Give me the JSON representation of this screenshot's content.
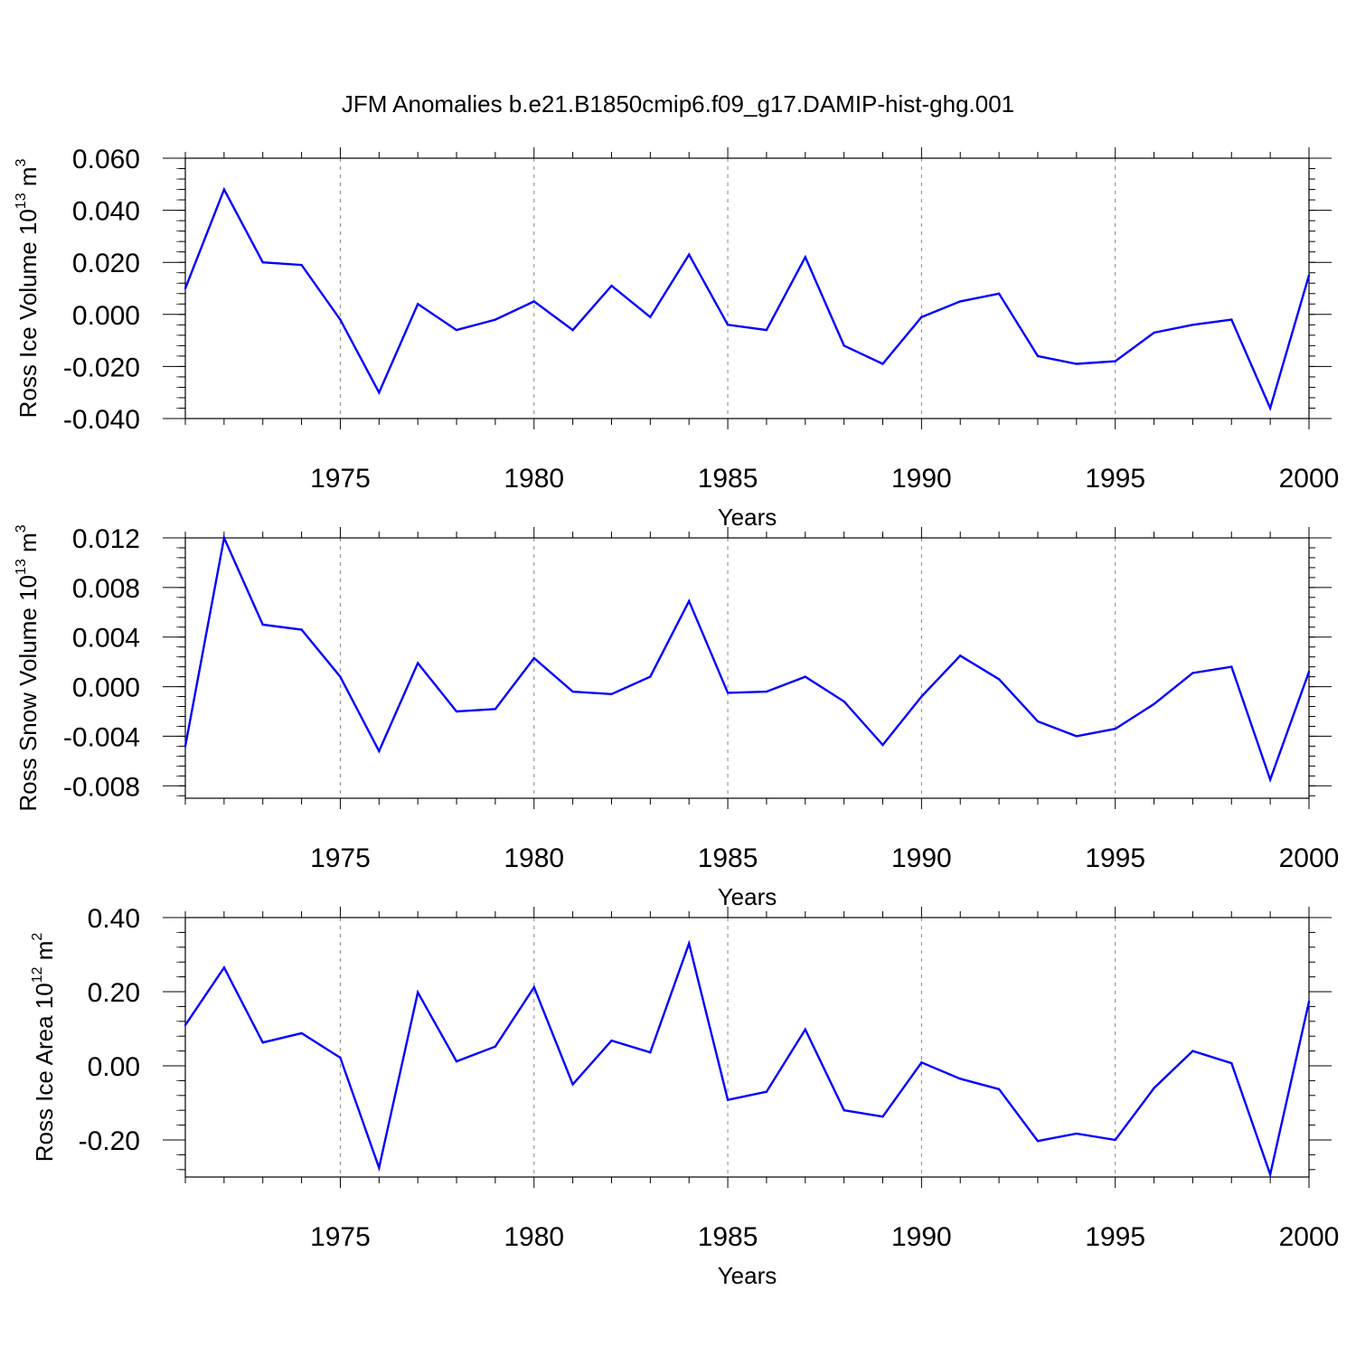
{
  "title": "JFM Anomalies b.e21.B1850cmip6.f09_g17.DAMIP-hist-ghg.001",
  "colors": {
    "line": "#0000ff",
    "axis": "#000000",
    "grid": "#888888"
  },
  "chart_data": [
    {
      "type": "line",
      "ylabel": "Ross Ice Volume",
      "yunit_base": "10",
      "yunit_exp": "13",
      "yunit_suffix": "m",
      "yunit_suffix_exp": "3",
      "xlabel": "Years",
      "xlim": [
        1971,
        2000
      ],
      "ylim": [
        -0.04,
        0.06
      ],
      "yticks": [
        -0.04,
        -0.02,
        0.0,
        0.02,
        0.04,
        0.06
      ],
      "ytick_labels": [
        "-0.040",
        "-0.020",
        "0.000",
        "0.020",
        "0.040",
        "0.060"
      ],
      "xticks": [
        1975,
        1980,
        1985,
        1990,
        1995,
        2000
      ],
      "xtick_labels": [
        "1975",
        "1980",
        "1985",
        "1990",
        "1995",
        "2000"
      ],
      "years": [
        1971,
        1972,
        1973,
        1974,
        1975,
        1976,
        1977,
        1978,
        1979,
        1980,
        1981,
        1982,
        1983,
        1984,
        1985,
        1986,
        1987,
        1988,
        1989,
        1990,
        1991,
        1992,
        1993,
        1994,
        1995,
        1996,
        1997,
        1998,
        1999,
        2000
      ],
      "values": [
        0.01,
        0.048,
        0.02,
        0.019,
        -0.002,
        -0.03,
        0.004,
        -0.006,
        -0.002,
        0.005,
        -0.006,
        0.011,
        -0.001,
        0.023,
        -0.004,
        -0.006,
        0.022,
        -0.012,
        -0.019,
        -0.001,
        0.005,
        0.008,
        -0.016,
        -0.019,
        -0.018,
        -0.007,
        -0.004,
        -0.002,
        -0.036,
        0.015
      ]
    },
    {
      "type": "line",
      "ylabel": "Ross Snow Volume",
      "yunit_base": "10",
      "yunit_exp": "13",
      "yunit_suffix": "m",
      "yunit_suffix_exp": "3",
      "xlabel": "Years",
      "xlim": [
        1971,
        2000
      ],
      "ylim": [
        -0.009,
        0.012
      ],
      "yticks": [
        -0.008,
        -0.004,
        0.0,
        0.004,
        0.008,
        0.012
      ],
      "ytick_labels": [
        "-0.008",
        "-0.004",
        "0.000",
        "0.004",
        "0.008",
        "0.012"
      ],
      "xticks": [
        1975,
        1980,
        1985,
        1990,
        1995,
        2000
      ],
      "xtick_labels": [
        "1975",
        "1980",
        "1985",
        "1990",
        "1995",
        "2000"
      ],
      "years": [
        1971,
        1972,
        1973,
        1974,
        1975,
        1976,
        1977,
        1978,
        1979,
        1980,
        1981,
        1982,
        1983,
        1984,
        1985,
        1986,
        1987,
        1988,
        1989,
        1990,
        1991,
        1992,
        1993,
        1994,
        1995,
        1996,
        1997,
        1998,
        1999,
        2000
      ],
      "values": [
        -0.0048,
        0.012,
        0.005,
        0.0046,
        0.0008,
        -0.0052,
        0.0019,
        -0.002,
        -0.0018,
        0.0023,
        -0.0004,
        -0.0006,
        0.0008,
        0.0069,
        -0.0005,
        -0.0004,
        0.0008,
        -0.0012,
        -0.0047,
        -0.0008,
        0.0025,
        0.0006,
        -0.0028,
        -0.004,
        -0.0034,
        -0.0014,
        0.0011,
        0.0016,
        -0.0075,
        0.0012
      ]
    },
    {
      "type": "line",
      "ylabel": "Ross Ice Area",
      "yunit_base": "10",
      "yunit_exp": "12",
      "yunit_suffix": "m",
      "yunit_suffix_exp": "2",
      "xlabel": "Years",
      "xlim": [
        1971,
        2000
      ],
      "ylim": [
        -0.3,
        0.4
      ],
      "yticks": [
        -0.2,
        0.0,
        0.2,
        0.4
      ],
      "ytick_labels": [
        "-0.20",
        "0.00",
        "0.20",
        "0.40"
      ],
      "xticks": [
        1975,
        1980,
        1985,
        1990,
        1995,
        2000
      ],
      "xtick_labels": [
        "1975",
        "1980",
        "1985",
        "1990",
        "1995",
        "2000"
      ],
      "years": [
        1971,
        1972,
        1973,
        1974,
        1975,
        1976,
        1977,
        1978,
        1979,
        1980,
        1981,
        1982,
        1983,
        1984,
        1985,
        1986,
        1987,
        1988,
        1989,
        1990,
        1991,
        1992,
        1993,
        1994,
        1995,
        1996,
        1997,
        1998,
        1999,
        2000
      ],
      "values": [
        0.11,
        0.265,
        0.063,
        0.088,
        0.022,
        -0.275,
        0.198,
        0.012,
        0.052,
        0.212,
        -0.05,
        0.068,
        0.036,
        0.33,
        -0.092,
        -0.07,
        0.098,
        -0.12,
        -0.137,
        0.009,
        -0.035,
        -0.063,
        -0.203,
        -0.183,
        -0.2,
        -0.06,
        0.04,
        0.007,
        -0.293,
        0.173
      ]
    }
  ]
}
